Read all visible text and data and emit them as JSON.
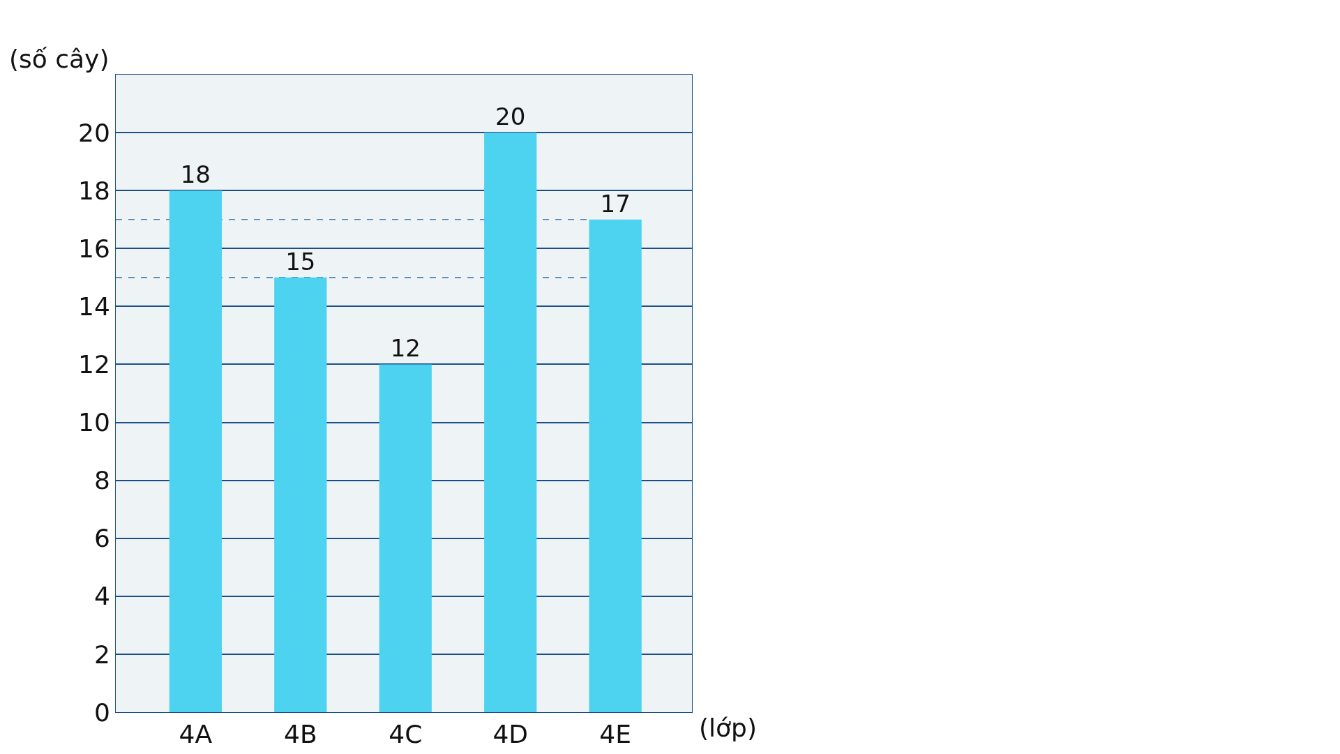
{
  "chart_data": {
    "type": "bar",
    "ylabel": "(số cây)",
    "xlabel": "(lớp)",
    "categories": [
      "4A",
      "4B",
      "4C",
      "4D",
      "4E"
    ],
    "values": [
      18,
      15,
      12,
      20,
      17
    ],
    "color": "#4dd2f0",
    "ylim": [
      0,
      22
    ],
    "yticks": [
      0,
      2,
      4,
      6,
      8,
      10,
      12,
      14,
      16,
      18,
      20
    ],
    "grid": "y",
    "data_labels": true,
    "ref_lines": [
      {
        "axis": "y",
        "value": 17,
        "line_style": "dashed",
        "color": "#1a5a9a"
      },
      {
        "axis": "y",
        "value": 15,
        "line_style": "dashed",
        "color": "#1a5a9a"
      }
    ]
  }
}
